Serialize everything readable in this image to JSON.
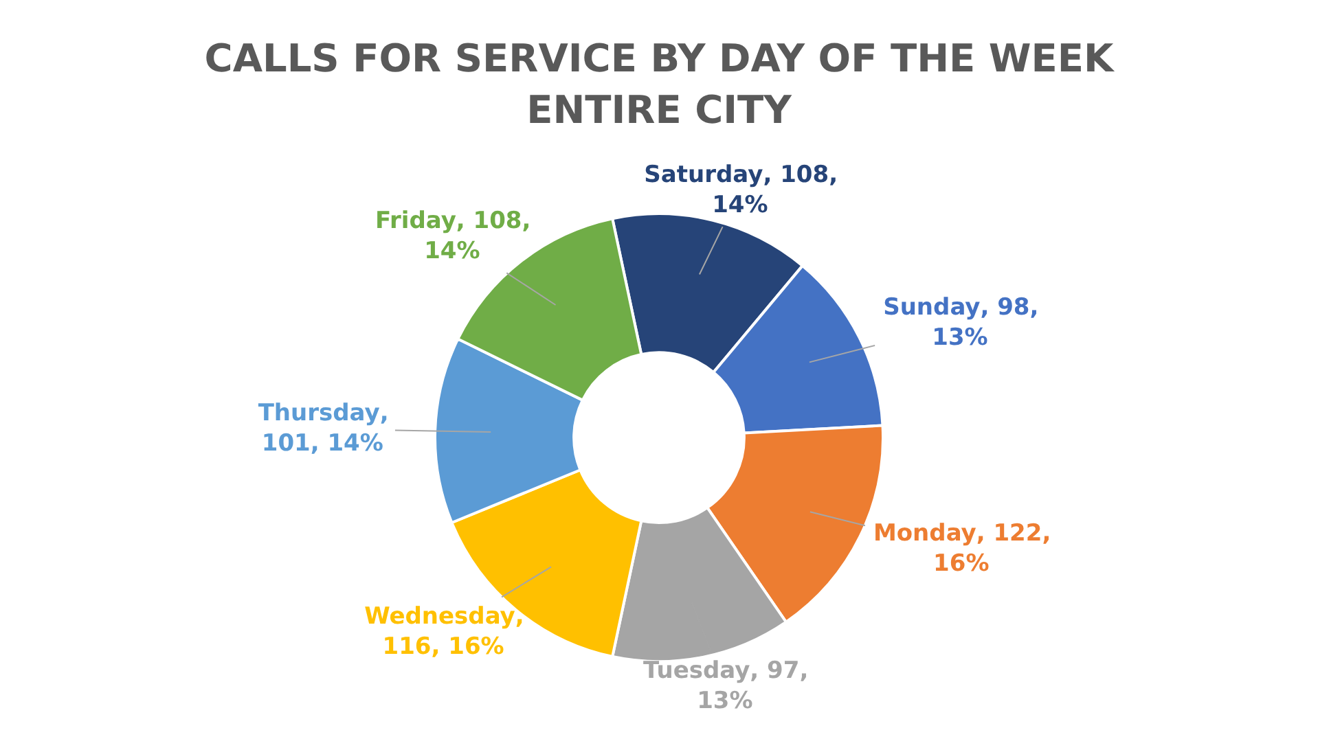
{
  "chart_data": {
    "type": "donut",
    "title": "CALLS FOR SERVICE BY DAY OF THE WEEK",
    "subtitle": "ENTIRE CITY",
    "categories": [
      "Saturday",
      "Sunday",
      "Monday",
      "Tuesday",
      "Wednesday",
      "Thursday",
      "Friday"
    ],
    "values": [
      108,
      98,
      122,
      97,
      116,
      101,
      108
    ],
    "colors": [
      "#264478",
      "#4472c4",
      "#ed7d31",
      "#a5a5a5",
      "#ffc000",
      "#5b9bd5",
      "#70ad47"
    ],
    "value_labels": [
      ", 108, 14%",
      ", 98, 13%",
      ", 122, 16%",
      ", 97, 13%",
      ", 116, 16%",
      ", 101, 14%",
      ", 108, 14%"
    ],
    "legend": false
  }
}
